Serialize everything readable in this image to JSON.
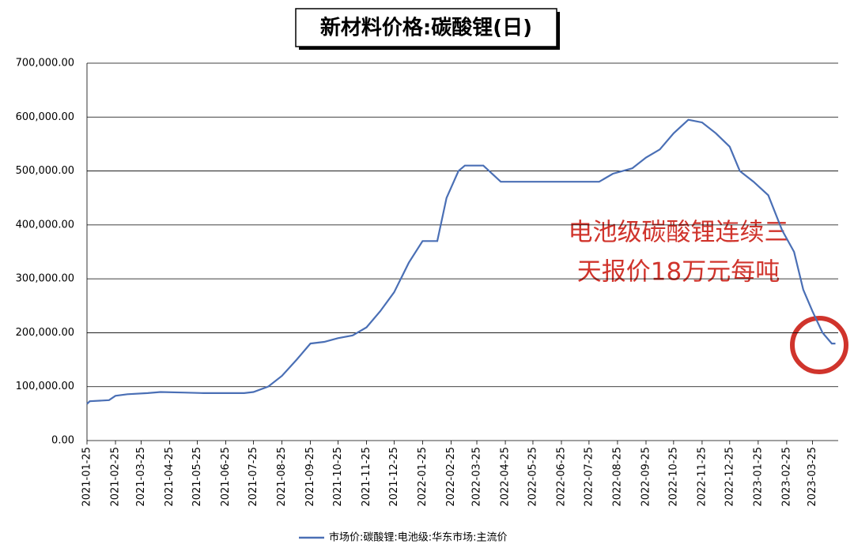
{
  "chart_data": {
    "type": "line",
    "title": "新材料价格:碳酸锂(日)",
    "annotation": [
      "电池级碳酸锂连续三",
      "天报价18万元每吨"
    ],
    "x": [
      "2021-01-25",
      "2021-01-28",
      "2021-02-18",
      "2021-02-25",
      "2021-03-10",
      "2021-04-01",
      "2021-04-15",
      "2021-05-10",
      "2021-06-01",
      "2021-07-15",
      "2021-07-25",
      "2021-08-10",
      "2021-08-25",
      "2021-09-10",
      "2021-09-25",
      "2021-10-10",
      "2021-10-25",
      "2021-11-10",
      "2021-11-25",
      "2021-12-10",
      "2021-12-25",
      "2022-01-10",
      "2022-01-25",
      "2022-02-10",
      "2022-02-20",
      "2022-03-05",
      "2022-03-12",
      "2022-04-01",
      "2022-04-20",
      "2022-08-05",
      "2022-08-20",
      "2022-09-10",
      "2022-09-25",
      "2022-10-10",
      "2022-10-25",
      "2022-11-10",
      "2022-11-25",
      "2022-12-10",
      "2022-12-25",
      "2023-01-05",
      "2023-01-20",
      "2023-02-05",
      "2023-02-20",
      "2023-03-05",
      "2023-03-15",
      "2023-03-25",
      "2023-04-05",
      "2023-04-15",
      "2023-04-19"
    ],
    "series": [
      {
        "name": "市场价:碳酸锂:电池级:华东市场:主流价",
        "color": "#4a6fb5",
        "values": [
          68000,
          73000,
          75000,
          83000,
          86000,
          88000,
          90000,
          89000,
          88000,
          88000,
          90000,
          100000,
          120000,
          150000,
          180000,
          183000,
          190000,
          195000,
          210000,
          240000,
          275000,
          330000,
          370000,
          370000,
          450000,
          500000,
          510000,
          510000,
          480000,
          480000,
          495000,
          505000,
          525000,
          540000,
          570000,
          595000,
          590000,
          570000,
          545000,
          500000,
          480000,
          455000,
          390000,
          350000,
          280000,
          240000,
          200000,
          180000,
          180000
        ]
      }
    ],
    "xlim": [
      "2021-01-25",
      "2023-04-22"
    ],
    "xticks": [
      "2021-01-25",
      "2021-02-25",
      "2021-03-25",
      "2021-04-25",
      "2021-05-25",
      "2021-06-25",
      "2021-07-25",
      "2021-08-25",
      "2021-09-25",
      "2021-10-25",
      "2021-11-25",
      "2021-12-25",
      "2022-01-25",
      "2022-02-25",
      "2022-03-25",
      "2022-04-25",
      "2022-05-25",
      "2022-06-25",
      "2022-07-25",
      "2022-08-25",
      "2022-09-25",
      "2022-10-25",
      "2022-11-25",
      "2022-12-25",
      "2023-01-25",
      "2023-02-25",
      "2023-03-25"
    ],
    "ylim": [
      0,
      700000
    ],
    "yticks": [
      {
        "value": 0,
        "label": "0.00"
      },
      {
        "value": 100000,
        "label": "100,000.00"
      },
      {
        "value": 200000,
        "label": "200,000.00"
      },
      {
        "value": 300000,
        "label": "300,000.00"
      },
      {
        "value": 400000,
        "label": "400,000.00"
      },
      {
        "value": 500000,
        "label": "500,000.00"
      },
      {
        "value": 600000,
        "label": "600,000.00"
      },
      {
        "value": 700000,
        "label": "700,000.00"
      }
    ],
    "grid": true
  }
}
